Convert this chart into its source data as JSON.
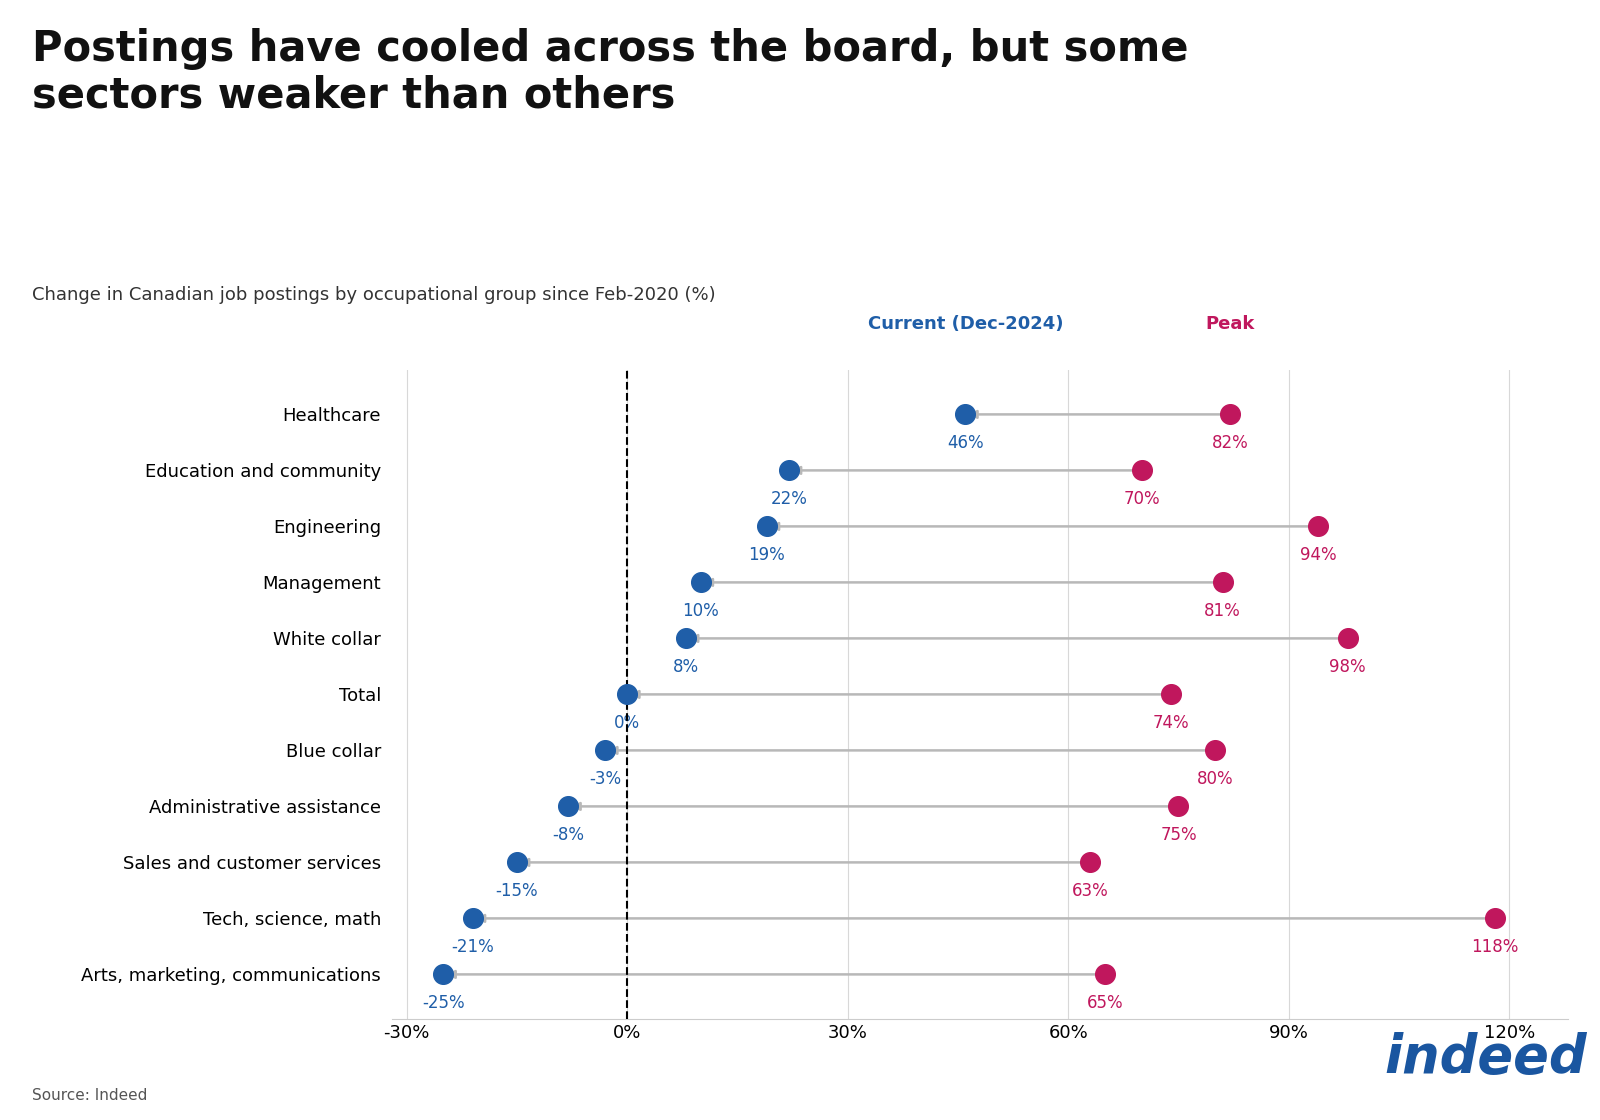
{
  "title": "Postings have cooled across the board, but some\nsectors weaker than others",
  "subtitle": "Change in Canadian job postings by occupational group since Feb-2020 (%)",
  "categories": [
    "Healthcare",
    "Education and community",
    "Engineering",
    "Management",
    "White collar",
    "Total",
    "Blue collar",
    "Administrative assistance",
    "Sales and customer services",
    "Tech, science, math",
    "Arts, marketing, communications"
  ],
  "current_values": [
    46,
    22,
    19,
    10,
    8,
    0,
    -3,
    -8,
    -15,
    -21,
    -25
  ],
  "peak_values": [
    82,
    70,
    94,
    81,
    98,
    74,
    80,
    75,
    63,
    118,
    65
  ],
  "current_color": "#1f5ea8",
  "peak_color": "#c0175d",
  "connector_color": "#b8b8b8",
  "background_color": "#ffffff",
  "xlim": [
    -0.32,
    1.28
  ],
  "xticks": [
    -0.3,
    0.0,
    0.3,
    0.6,
    0.9,
    1.2
  ],
  "xticklabels": [
    "-30%",
    "0%",
    "30%",
    "60%",
    "90%",
    "120%"
  ],
  "source_text": "Source: Indeed",
  "legend_current_label": "Current (Dec-2024)",
  "legend_peak_label": "Peak",
  "dot_size": 200,
  "title_fontsize": 30,
  "subtitle_fontsize": 13,
  "tick_fontsize": 13,
  "label_fontsize": 13,
  "annotation_fontsize": 12
}
